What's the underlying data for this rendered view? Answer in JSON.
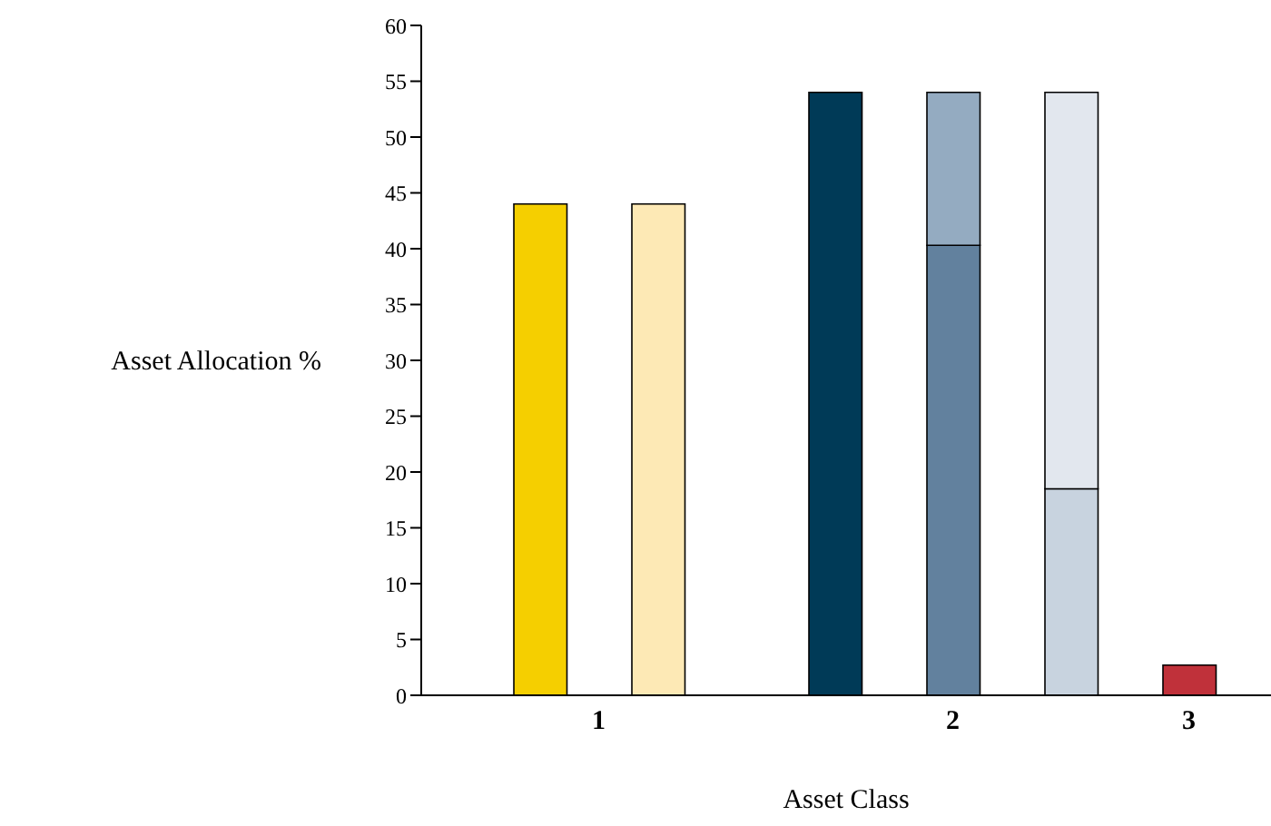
{
  "chart_data": {
    "type": "bar",
    "xlabel": "Asset Class",
    "ylabel": "Asset Allocation %",
    "categories": [
      null,
      "1",
      null,
      null,
      null,
      null,
      null,
      "2",
      null,
      null,
      null,
      "3"
    ],
    "ylim": [
      0,
      60
    ],
    "yticks": [
      0,
      5,
      10,
      15,
      20,
      25,
      30,
      35,
      40,
      45,
      50,
      55,
      60
    ],
    "stacked": true,
    "series": [
      {
        "colors": [
          "#f5cf00",
          null,
          "#fde9b5",
          null,
          null,
          "#003a57",
          null,
          "#62819e",
          null,
          "#c8d3df",
          null,
          "#c0313a"
        ],
        "values": [
          44,
          null,
          44,
          null,
          null,
          54,
          null,
          40.3,
          null,
          18.5,
          null,
          2.7
        ]
      },
      {
        "colors": [
          null,
          null,
          null,
          null,
          null,
          null,
          null,
          "#94abc1",
          null,
          "#e2e7ee",
          null,
          null
        ],
        "values": [
          null,
          null,
          null,
          null,
          null,
          null,
          null,
          13.7,
          null,
          35.5,
          null,
          null
        ]
      }
    ]
  }
}
